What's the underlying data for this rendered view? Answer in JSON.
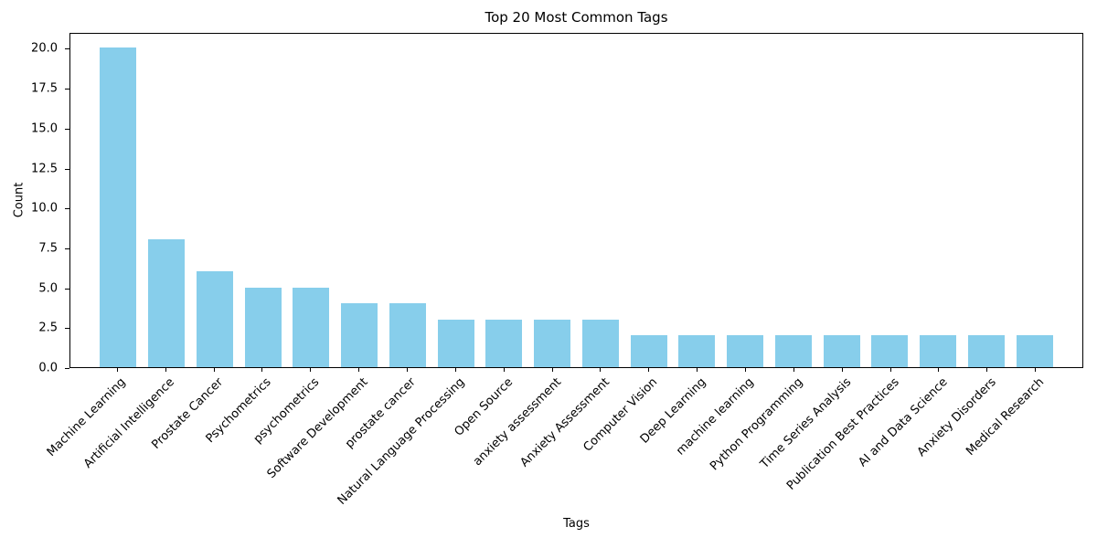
{
  "chart_data": {
    "type": "bar",
    "title": "Top 20 Most Common Tags",
    "xlabel": "Tags",
    "ylabel": "Count",
    "categories": [
      "Machine Learning",
      "Artificial Intelligence",
      "Prostate Cancer",
      "Psychometrics",
      "psychometrics",
      "Software Development",
      "prostate cancer",
      "Natural Language Processing",
      "Open Source",
      "anxiety assessment",
      "Anxiety Assessment",
      "Computer Vision",
      "Deep Learning",
      "machine learning",
      "Python Programming",
      "Time Series Analysis",
      "Publication Best Practices",
      "AI and Data Science",
      "Anxiety Disorders",
      "Medical Research"
    ],
    "values": [
      20,
      8,
      6,
      5,
      5,
      4,
      4,
      3,
      3,
      3,
      3,
      2,
      2,
      2,
      2,
      2,
      2,
      2,
      2,
      2
    ],
    "yticks": [
      "0.0",
      "2.5",
      "5.0",
      "7.5",
      "10.0",
      "12.5",
      "15.0",
      "17.5",
      "20.0"
    ],
    "ylim": [
      0,
      21
    ],
    "bar_color": "#87ceeb",
    "axis_color": "#000000",
    "grid": false,
    "legend_position": "none",
    "x_tick_rotation_deg": 45
  }
}
